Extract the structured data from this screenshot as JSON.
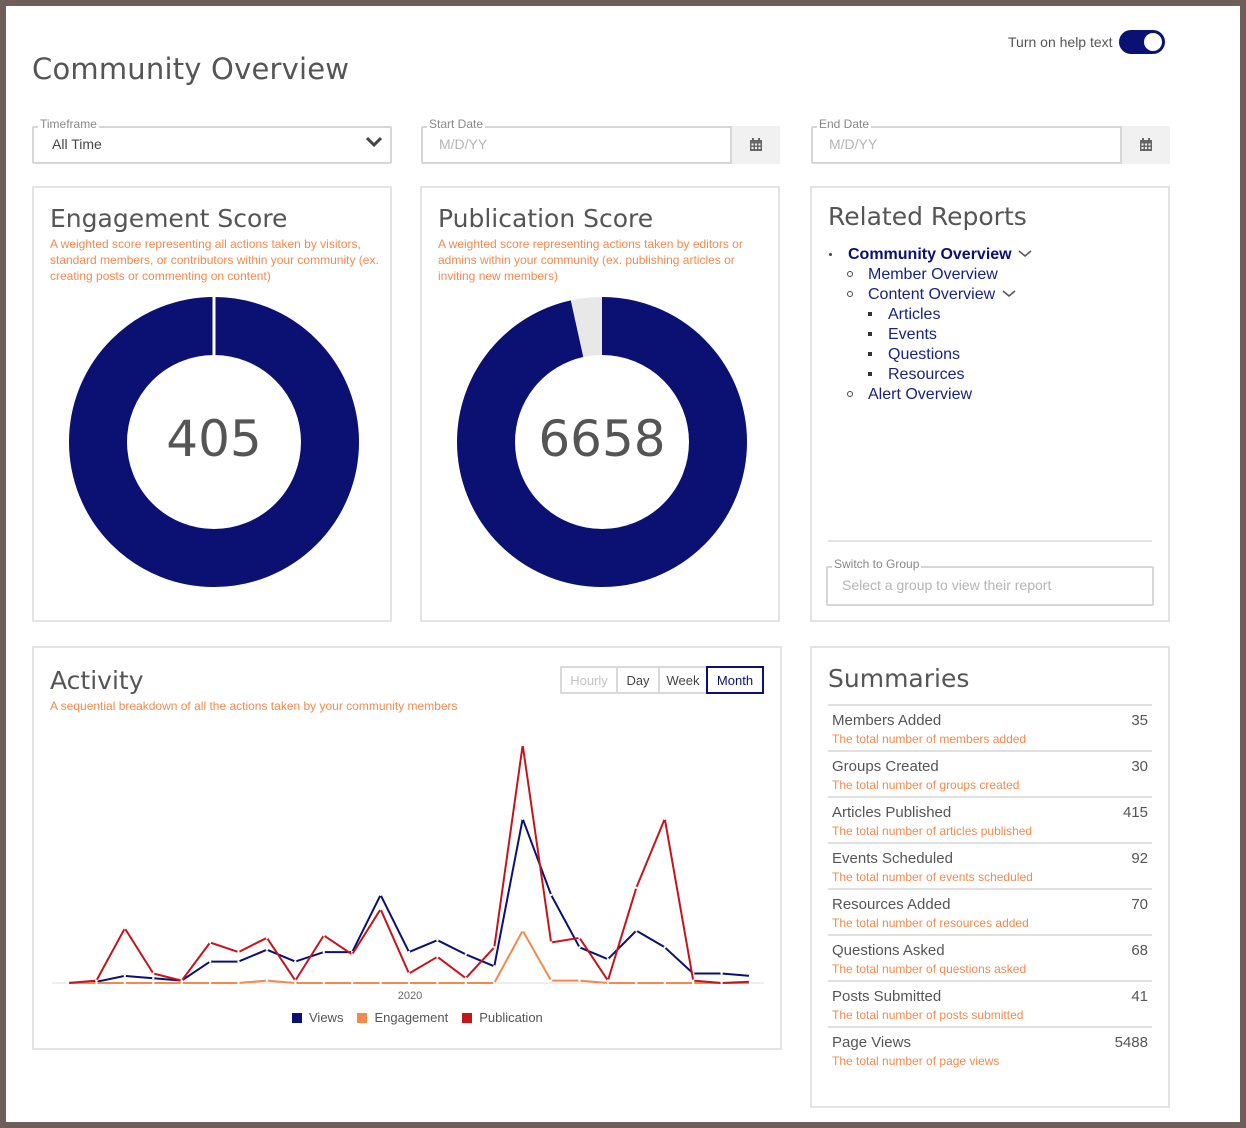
{
  "page": {
    "title": "Community Overview"
  },
  "help_toggle": {
    "label": "Turn on help text",
    "on": true
  },
  "filters": {
    "timeframe": {
      "label": "Timeframe",
      "value": "All Time"
    },
    "start_date": {
      "label": "Start Date",
      "placeholder": "M/D/YY"
    },
    "end_date": {
      "label": "End Date",
      "placeholder": "M/D/YY"
    }
  },
  "engagement": {
    "title": "Engagement Score",
    "description": "A weighted score representing all actions taken by visitors, standard members, or contributors within your community (ex. creating posts or commenting on content)",
    "value": "405",
    "fill_fraction": 1.0
  },
  "publication": {
    "title": "Publication Score",
    "description": "A weighted score representing actions taken by editors or admins within your community (ex. publishing articles or inviting new members)",
    "value": "6658",
    "fill_fraction": 0.965
  },
  "colors": {
    "navy": "#0a1172",
    "orange": "#f28a4e",
    "red": "#c3161c",
    "gray_track": "#e8e8e8"
  },
  "related_reports": {
    "title": "Related Reports",
    "items": [
      {
        "label": "Community Overview",
        "level": 0,
        "expanded": true,
        "current": true
      },
      {
        "label": "Member Overview",
        "level": 1
      },
      {
        "label": "Content Overview",
        "level": 1,
        "expanded": true
      },
      {
        "label": "Articles",
        "level": 2
      },
      {
        "label": "Events",
        "level": 2
      },
      {
        "label": "Questions",
        "level": 2
      },
      {
        "label": "Resources",
        "level": 2
      },
      {
        "label": "Alert Overview",
        "level": 1
      }
    ],
    "switch_group": {
      "label": "Switch to Group",
      "placeholder": "Select a group to view their report"
    }
  },
  "activity": {
    "title": "Activity",
    "description": "A sequential breakdown of all the actions taken by your community members",
    "tabs": [
      {
        "label": "Hourly",
        "state": "disabled"
      },
      {
        "label": "Day",
        "state": "normal"
      },
      {
        "label": "Week",
        "state": "normal"
      },
      {
        "label": "Month",
        "state": "active"
      }
    ]
  },
  "chart_data": {
    "type": "line",
    "x_tick_labels": [
      "2020"
    ],
    "ylim": [
      0,
      100
    ],
    "grid": false,
    "legend_position": "bottom",
    "series": [
      {
        "name": "Views",
        "color": "#0a1172",
        "values": [
          0,
          0.5,
          3,
          2,
          1,
          9,
          9,
          14,
          9,
          13,
          13,
          37,
          13,
          18,
          12,
          7,
          69,
          37,
          15,
          10,
          22,
          15,
          4,
          4,
          3
        ]
      },
      {
        "name": "Engagement",
        "color": "#f28a4e",
        "values": [
          0,
          0,
          0,
          0,
          0,
          0,
          0,
          1,
          0,
          0,
          0,
          0,
          0,
          0,
          0,
          0,
          22,
          1,
          1,
          0,
          0,
          0,
          0,
          0,
          0
        ]
      },
      {
        "name": "Publication",
        "color": "#c3161c",
        "values": [
          0,
          1,
          23,
          4,
          1,
          17,
          13,
          19,
          1,
          20,
          12,
          31,
          4,
          11,
          2,
          15,
          100,
          17,
          19,
          1,
          40,
          69,
          1,
          0,
          0.5
        ]
      }
    ]
  },
  "summaries": {
    "title": "Summaries",
    "rows": [
      {
        "label": "Members Added",
        "value": "35",
        "desc": "The total number of members added"
      },
      {
        "label": "Groups Created",
        "value": "30",
        "desc": "The total number of groups created"
      },
      {
        "label": "Articles Published",
        "value": "415",
        "desc": "The total number of articles published"
      },
      {
        "label": "Events Scheduled",
        "value": "92",
        "desc": "The total number of events scheduled"
      },
      {
        "label": "Resources Added",
        "value": "70",
        "desc": "The total number of resources added"
      },
      {
        "label": "Questions Asked",
        "value": "68",
        "desc": "The total number of questions asked"
      },
      {
        "label": "Posts Submitted",
        "value": "41",
        "desc": "The total number of posts submitted"
      },
      {
        "label": "Page Views",
        "value": "5488",
        "desc": "The total number of page views"
      }
    ]
  }
}
